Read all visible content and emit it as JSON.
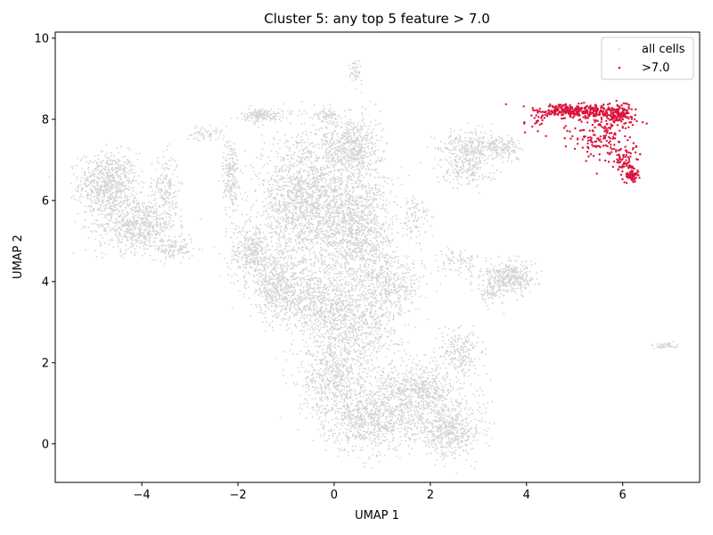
{
  "chart_data": {
    "type": "scatter",
    "title": "Cluster 5: any top 5 feature > 7.0",
    "xlabel": "UMAP 1",
    "ylabel": "UMAP 2",
    "xlim": [
      -5.8,
      7.6
    ],
    "ylim": [
      -0.95,
      10.15
    ],
    "xticks": [
      -4,
      -2,
      0,
      2,
      4,
      6
    ],
    "yticks": [
      0,
      2,
      4,
      6,
      8,
      10
    ],
    "grid": false,
    "legend_position": "upper-right",
    "colors": {
      "background": "#d3d3d3",
      "highlight": "#dc143c"
    },
    "series": [
      {
        "name": "all cells",
        "color": "#d3d3d3",
        "regions": [
          {
            "cx": -4.7,
            "cy": 6.4,
            "rx": 0.55,
            "ry": 0.7,
            "n": 700
          },
          {
            "cx": -4.1,
            "cy": 5.4,
            "rx": 0.75,
            "ry": 0.6,
            "n": 650
          },
          {
            "cx": -3.5,
            "cy": 6.3,
            "rx": 0.25,
            "ry": 0.75,
            "n": 180
          },
          {
            "cx": -3.3,
            "cy": 4.8,
            "rx": 0.35,
            "ry": 0.25,
            "n": 120
          },
          {
            "cx": -2.7,
            "cy": 7.65,
            "rx": 0.35,
            "ry": 0.15,
            "n": 60
          },
          {
            "cx": -2.15,
            "cy": 6.6,
            "rx": 0.15,
            "ry": 0.9,
            "n": 200
          },
          {
            "cx": -1.5,
            "cy": 8.1,
            "rx": 0.4,
            "ry": 0.15,
            "n": 170
          },
          {
            "cx": -1.7,
            "cy": 4.7,
            "rx": 0.45,
            "ry": 0.6,
            "n": 350
          },
          {
            "cx": -1.2,
            "cy": 3.9,
            "rx": 0.55,
            "ry": 0.6,
            "n": 350
          },
          {
            "cx": -0.6,
            "cy": 5.9,
            "rx": 0.9,
            "ry": 1.5,
            "n": 1700
          },
          {
            "cx": 0.35,
            "cy": 7.3,
            "rx": 0.55,
            "ry": 0.75,
            "n": 600
          },
          {
            "cx": 0.5,
            "cy": 5.3,
            "rx": 0.7,
            "ry": 1.3,
            "n": 1100
          },
          {
            "cx": -0.5,
            "cy": 3.5,
            "rx": 0.85,
            "ry": 0.7,
            "n": 600
          },
          {
            "cx": 0.45,
            "cy": 3.0,
            "rx": 0.85,
            "ry": 1.0,
            "n": 700
          },
          {
            "cx": 1.2,
            "cy": 3.9,
            "rx": 0.6,
            "ry": 0.7,
            "n": 350
          },
          {
            "cx": 1.7,
            "cy": 5.6,
            "rx": 0.25,
            "ry": 0.5,
            "n": 90
          },
          {
            "cx": 0.0,
            "cy": 1.6,
            "rx": 0.7,
            "ry": 0.9,
            "n": 600
          },
          {
            "cx": 0.8,
            "cy": 0.6,
            "rx": 0.9,
            "ry": 0.7,
            "n": 800
          },
          {
            "cx": 1.8,
            "cy": 1.3,
            "rx": 0.9,
            "ry": 0.7,
            "n": 700
          },
          {
            "cx": 2.4,
            "cy": 0.3,
            "rx": 0.6,
            "ry": 0.55,
            "n": 500
          },
          {
            "cx": 2.6,
            "cy": 2.3,
            "rx": 0.4,
            "ry": 0.5,
            "n": 200
          },
          {
            "cx": 3.3,
            "cy": 3.9,
            "rx": 0.35,
            "ry": 0.4,
            "n": 150
          },
          {
            "cx": 2.6,
            "cy": 4.5,
            "rx": 0.4,
            "ry": 0.3,
            "n": 90
          },
          {
            "cx": 3.7,
            "cy": 4.1,
            "rx": 0.4,
            "ry": 0.35,
            "n": 300
          },
          {
            "cx": 2.8,
            "cy": 7.3,
            "rx": 0.55,
            "ry": 0.4,
            "n": 300
          },
          {
            "cx": 3.5,
            "cy": 7.3,
            "rx": 0.35,
            "ry": 0.25,
            "n": 150
          },
          {
            "cx": 2.8,
            "cy": 6.7,
            "rx": 0.5,
            "ry": 0.3,
            "n": 150
          },
          {
            "cx": 0.45,
            "cy": 9.15,
            "rx": 0.1,
            "ry": 0.3,
            "n": 45
          },
          {
            "cx": 6.9,
            "cy": 2.42,
            "rx": 0.25,
            "ry": 0.08,
            "n": 45
          },
          {
            "cx": -0.2,
            "cy": 8.1,
            "rx": 0.3,
            "ry": 0.15,
            "n": 60
          }
        ]
      },
      {
        "name": ">7.0",
        "color": "#dc143c",
        "regions": [
          {
            "cx": 5.0,
            "cy": 8.2,
            "rx": 0.75,
            "ry": 0.15,
            "n": 320
          },
          {
            "cx": 5.9,
            "cy": 8.1,
            "rx": 0.35,
            "ry": 0.25,
            "n": 160
          },
          {
            "cx": 5.55,
            "cy": 7.5,
            "rx": 0.55,
            "ry": 0.5,
            "n": 150
          },
          {
            "cx": 6.05,
            "cy": 7.0,
            "rx": 0.25,
            "ry": 0.35,
            "n": 70
          },
          {
            "cx": 6.2,
            "cy": 6.6,
            "rx": 0.15,
            "ry": 0.12,
            "n": 60
          },
          {
            "cx": 4.2,
            "cy": 7.95,
            "rx": 0.25,
            "ry": 0.25,
            "n": 20
          }
        ]
      }
    ]
  }
}
